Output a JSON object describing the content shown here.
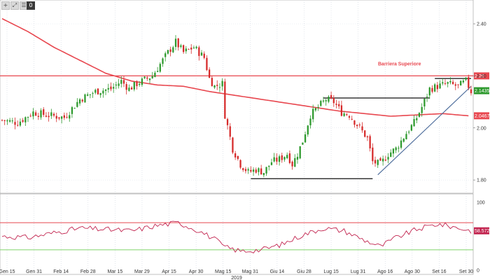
{
  "toolbar": {
    "buttons": [
      {
        "icon": "crosshair-icon",
        "glyph": "+"
      },
      {
        "icon": "zoom-icon",
        "glyph": "⤢"
      },
      {
        "icon": "settings-icon",
        "glyph": "☰"
      }
    ],
    "overlay_label": "0"
  },
  "chart_data": {
    "type": "candlestick",
    "year_label": "2019",
    "x_tick_labels": [
      "Gen 15",
      "Gen 31",
      "Feb 14",
      "Feb 28",
      "Mar 15",
      "Mar 29",
      "Apr 15",
      "Apr 30",
      "Mag 15",
      "Mag 31",
      "Giu 14",
      "Giu 28",
      "Lug 15",
      "Lug 31",
      "Ago 16",
      "Ago 30",
      "Set 16",
      "Set 30"
    ],
    "y_ticks": [
      1.8,
      2.0,
      2.2,
      2.4
    ],
    "y_tick_labels": [
      "1.80",
      "2.00",
      "2.20",
      "2.40"
    ],
    "y_range": [
      1.76,
      2.47
    ],
    "annotations": {
      "barrier_label": "Barriera Superiore",
      "barrier_value": 2.2,
      "barrier_tag": "2.20",
      "last_price_tag": "2.1435",
      "ma_tag": "2.0467",
      "ma_value": 2.0467
    },
    "support_lines": [
      {
        "from_index": 96,
        "to_index": 143,
        "value": 1.805
      },
      {
        "from_index": 124,
        "to_index": 165,
        "value": 2.115
      },
      {
        "from_index": 167,
        "to_index": 181,
        "value": 2.19
      }
    ],
    "trendline": {
      "from_index": 145,
      "from_value": 1.82,
      "to_index": 181,
      "to_value": 2.16
    },
    "anchors_close": [
      [
        0,
        2.03
      ],
      [
        6,
        2.02
      ],
      [
        12,
        2.06
      ],
      [
        17,
        2.05
      ],
      [
        24,
        2.04
      ],
      [
        30,
        2.11
      ],
      [
        36,
        2.14
      ],
      [
        42,
        2.15
      ],
      [
        46,
        2.18
      ],
      [
        49,
        2.15
      ],
      [
        52,
        2.17
      ],
      [
        58,
        2.2
      ],
      [
        64,
        2.29
      ],
      [
        67,
        2.33
      ],
      [
        70,
        2.29
      ],
      [
        74,
        2.31
      ],
      [
        78,
        2.27
      ],
      [
        80,
        2.19
      ],
      [
        82,
        2.16
      ],
      [
        85,
        2.17
      ],
      [
        86,
        2.05
      ],
      [
        89,
        1.92
      ],
      [
        92,
        1.86
      ],
      [
        95,
        1.83
      ],
      [
        98,
        1.84
      ],
      [
        101,
        1.83
      ],
      [
        104,
        1.87
      ],
      [
        107,
        1.88
      ],
      [
        110,
        1.9
      ],
      [
        112,
        1.86
      ],
      [
        114,
        1.9
      ],
      [
        116,
        1.95
      ],
      [
        119,
        2.05
      ],
      [
        122,
        2.08
      ],
      [
        125,
        2.11
      ],
      [
        128,
        2.1
      ],
      [
        131,
        2.06
      ],
      [
        134,
        2.05
      ],
      [
        138,
        2.0
      ],
      [
        141,
        1.96
      ],
      [
        143,
        1.87
      ],
      [
        146,
        1.86
      ],
      [
        149,
        1.9
      ],
      [
        152,
        1.92
      ],
      [
        156,
        1.98
      ],
      [
        159,
        2.02
      ],
      [
        162,
        2.08
      ],
      [
        165,
        2.15
      ],
      [
        168,
        2.16
      ],
      [
        172,
        2.17
      ],
      [
        176,
        2.16
      ],
      [
        179,
        2.18
      ],
      [
        181,
        2.14
      ]
    ],
    "moving_average": [
      [
        0,
        2.42
      ],
      [
        10,
        2.37
      ],
      [
        20,
        2.31
      ],
      [
        30,
        2.26
      ],
      [
        40,
        2.21
      ],
      [
        50,
        2.18
      ],
      [
        60,
        2.165
      ],
      [
        70,
        2.16
      ],
      [
        80,
        2.14
      ],
      [
        90,
        2.125
      ],
      [
        100,
        2.11
      ],
      [
        110,
        2.095
      ],
      [
        120,
        2.08
      ],
      [
        130,
        2.065
      ],
      [
        140,
        2.055
      ],
      [
        150,
        2.045
      ],
      [
        160,
        2.05
      ],
      [
        170,
        2.055
      ],
      [
        180,
        2.0467
      ]
    ],
    "total_bars": 182,
    "indicator": {
      "name": "RSI",
      "levels": [
        70,
        30
      ],
      "y_tick_labels": [
        "100",
        "0"
      ],
      "last_value_tag": "58.5721",
      "anchors": [
        [
          0,
          50
        ],
        [
          10,
          48
        ],
        [
          20,
          55
        ],
        [
          30,
          62
        ],
        [
          40,
          60
        ],
        [
          50,
          58
        ],
        [
          60,
          66
        ],
        [
          68,
          70
        ],
        [
          76,
          58
        ],
        [
          82,
          46
        ],
        [
          86,
          34
        ],
        [
          92,
          28
        ],
        [
          100,
          30
        ],
        [
          108,
          38
        ],
        [
          116,
          52
        ],
        [
          124,
          62
        ],
        [
          132,
          58
        ],
        [
          140,
          44
        ],
        [
          146,
          35
        ],
        [
          152,
          48
        ],
        [
          160,
          60
        ],
        [
          168,
          68
        ],
        [
          174,
          64
        ],
        [
          181,
          58
        ]
      ]
    },
    "colors": {
      "up": "#2e9a2e",
      "down": "#d62b2b",
      "ma": "#e8474f",
      "barrier": "#e8474f",
      "rsi_line": "#c2244f",
      "rsi_upper": "#e8474f",
      "rsi_lower": "#7fd46a",
      "trendline": "#4a6a9a"
    }
  }
}
